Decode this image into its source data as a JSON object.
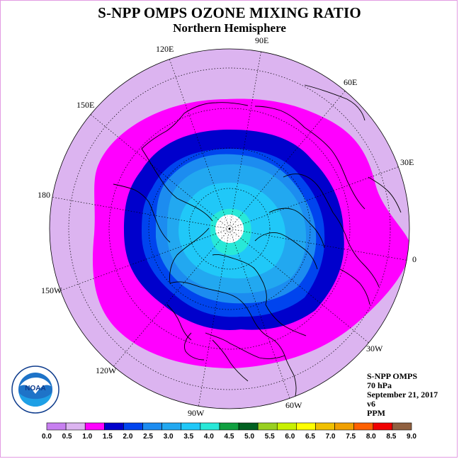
{
  "title": "S-NPP OMPS OZONE MIXING RATIO",
  "subtitle": "Northern Hemisphere",
  "logo": {
    "text": "NOAA"
  },
  "longitude_labels": [
    {
      "id": "90e",
      "text": "90E"
    },
    {
      "id": "60e",
      "text": "60E"
    },
    {
      "id": "30e",
      "text": "30E"
    },
    {
      "id": "0",
      "text": "0"
    },
    {
      "id": "30w",
      "text": "30W"
    },
    {
      "id": "60w",
      "text": "60W"
    },
    {
      "id": "90w",
      "text": "90W"
    },
    {
      "id": "120w",
      "text": "120W"
    },
    {
      "id": "150w",
      "text": "150W"
    },
    {
      "id": "180",
      "text": "180"
    },
    {
      "id": "150e",
      "text": "150E"
    },
    {
      "id": "120e",
      "text": "120E"
    }
  ],
  "info": {
    "instrument": "S-NPP OMPS",
    "level": "70 hPa",
    "date": "September 21, 2017",
    "version": "v6",
    "units": "PPM"
  },
  "colorbar": {
    "ticks": [
      "0.0",
      "0.5",
      "1.0",
      "1.5",
      "2.0",
      "2.5",
      "3.0",
      "3.5",
      "4.0",
      "4.5",
      "5.0",
      "5.5",
      "6.0",
      "6.5",
      "7.0",
      "7.5",
      "8.0",
      "8.5",
      "9.0"
    ],
    "colors": [
      "#c77ff0",
      "#dcb4f0",
      "#ff00ff",
      "#0000cc",
      "#0044ee",
      "#1c8cf0",
      "#22a8f0",
      "#20c8f8",
      "#28e8d8",
      "#10a040",
      "#006020",
      "#98d020",
      "#c8f000",
      "#ffff00",
      "#f0c000",
      "#f0a000",
      "#ff6000",
      "#f00000",
      "#906040"
    ]
  },
  "map_colors": {
    "outer": "#dcb4f0",
    "ring_1": "#ff00ff",
    "ring_2": "#0000cc",
    "ring_3": "#0044ee",
    "ring_4": "#1c8cf0",
    "ring_5": "#22a8f0",
    "ring_6": "#20c8f8",
    "ring_7": "#28e8d8",
    "pole": "#ffffff"
  }
}
